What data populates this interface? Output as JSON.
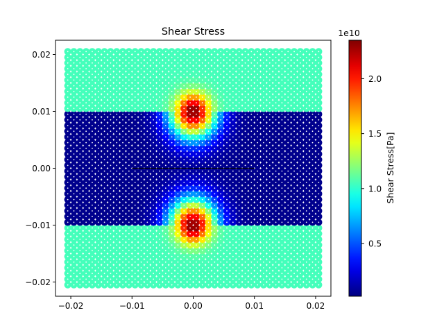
{
  "chart_data": {
    "type": "scatter",
    "title": "Shear Stress",
    "xlabel": "",
    "ylabel": "",
    "xlim": [
      -0.0225,
      0.0225
    ],
    "ylim": [
      -0.0225,
      0.0225
    ],
    "xticks": [
      -0.02,
      -0.01,
      0.0,
      0.01,
      0.02
    ],
    "xtick_labels": [
      "−0.02",
      "−0.01",
      "0.00",
      "0.01",
      "0.02"
    ],
    "yticks": [
      -0.02,
      -0.01,
      0.0,
      0.01,
      0.02
    ],
    "ytick_labels": [
      "−0.02",
      "−0.01",
      "0.00",
      "0.01",
      "0.02"
    ],
    "grid": false,
    "colormap": "jet",
    "grid_points": {
      "x_range": [
        -0.0205,
        0.0205
      ],
      "y_range": [
        -0.0205,
        0.0205
      ],
      "count_per_axis": 42
    },
    "stress_model": {
      "band_y": [
        -0.0098,
        0.0098
      ],
      "outer_value": 10500000000.0,
      "inner_value": 500000000.0,
      "crack": {
        "x_range": [
          -0.01,
          0.01
        ],
        "y": 0.0,
        "color": "#000000"
      },
      "hotspots": [
        {
          "x": 0.0,
          "y": 0.0102,
          "peak": 23500000000.0
        },
        {
          "x": 0.0,
          "y": -0.0102,
          "peak": 23500000000.0
        }
      ]
    },
    "colorbar": {
      "label": "Shear Stress[Pa]",
      "multiplier_label": "1e10",
      "range": [
        200000000.0,
        23500000000.0
      ],
      "ticks": [
        5000000000.0,
        10000000000.0,
        15000000000.0,
        20000000000.0
      ],
      "tick_labels": [
        "0.5",
        "1.0",
        "1.5",
        "2.0"
      ]
    }
  }
}
